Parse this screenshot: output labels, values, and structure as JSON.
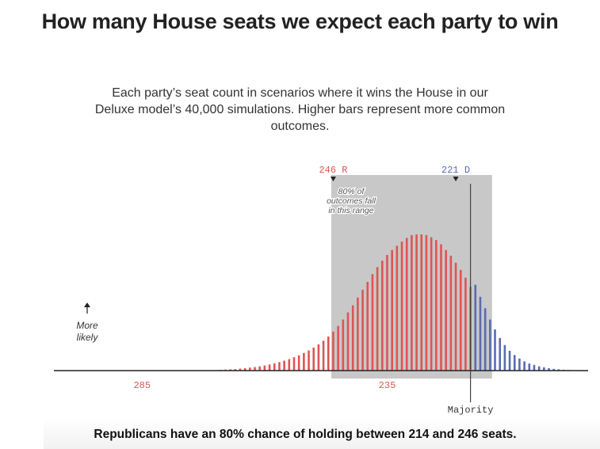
{
  "title": "How many House seats we expect each party to win",
  "subtitle": "Each party’s seat count in scenarios where it wins the House in our Deluxe model’s 40,000 simulations. Higher bars represent more common outcomes.",
  "footer": "Republicans have an 80% chance of holding between 214 and 246 seats.",
  "colors": {
    "republican": "#e05454",
    "democrat": "#5a6bb0",
    "range_band": "#c8c8c8"
  },
  "chart_data": {
    "type": "bar",
    "x_axis": {
      "reversed": true,
      "tick_labels": [
        "285",
        "235"
      ],
      "tick_values": [
        285,
        235
      ],
      "range": [
        303,
        194
      ]
    },
    "majority": {
      "label": "Majority",
      "value": 218
    },
    "range_80": {
      "low": 214,
      "high": 246,
      "note": "80% of outcomes fall in this range"
    },
    "markers": [
      {
        "label": "246 R",
        "value": 246,
        "party": "R"
      },
      {
        "label": "221 D",
        "value": 221,
        "party": "D"
      }
    ],
    "y_annotation": "More likely",
    "series": [
      {
        "party": "R",
        "x": [
          270,
          269,
          268,
          267,
          266,
          265,
          264,
          263,
          262,
          261,
          260,
          259,
          258,
          257,
          256,
          255,
          254,
          253,
          252,
          251,
          250,
          249,
          248,
          247,
          246,
          245,
          244,
          243,
          242,
          241,
          240,
          239,
          238,
          237,
          236,
          235,
          234,
          233,
          232,
          231,
          230,
          229,
          228,
          227,
          226,
          225,
          224,
          223,
          222,
          221,
          220,
          219,
          218
        ],
        "values": [
          0.3,
          0.5,
          0.7,
          0.9,
          1.1,
          1.4,
          1.7,
          2.1,
          2.5,
          3,
          3.6,
          4.3,
          5.1,
          6,
          7,
          8.1,
          9.4,
          10.8,
          12.4,
          14.2,
          16.2,
          18.5,
          21.1,
          24,
          27.5,
          31.5,
          36,
          41,
          46,
          51.5,
          57,
          62.5,
          68,
          73,
          77.5,
          81.5,
          85,
          88,
          91,
          93.5,
          95.5,
          96,
          96,
          95.5,
          94,
          92,
          89,
          85,
          81,
          76,
          71,
          65.5,
          59
        ]
      },
      {
        "party": "D",
        "x": [
          217,
          216,
          215,
          214,
          213,
          212,
          211,
          210,
          209,
          208,
          207,
          206,
          205,
          204,
          203,
          202,
          201,
          200,
          199,
          198,
          197,
          196,
          195
        ],
        "values": [
          60.5,
          52,
          44,
          36,
          29,
          23,
          18,
          14,
          11,
          8.5,
          6.5,
          5,
          4,
          3,
          2.3,
          1.7,
          1.2,
          0.9,
          0.6,
          0.4,
          0.3,
          0.2,
          0.1
        ]
      }
    ]
  }
}
